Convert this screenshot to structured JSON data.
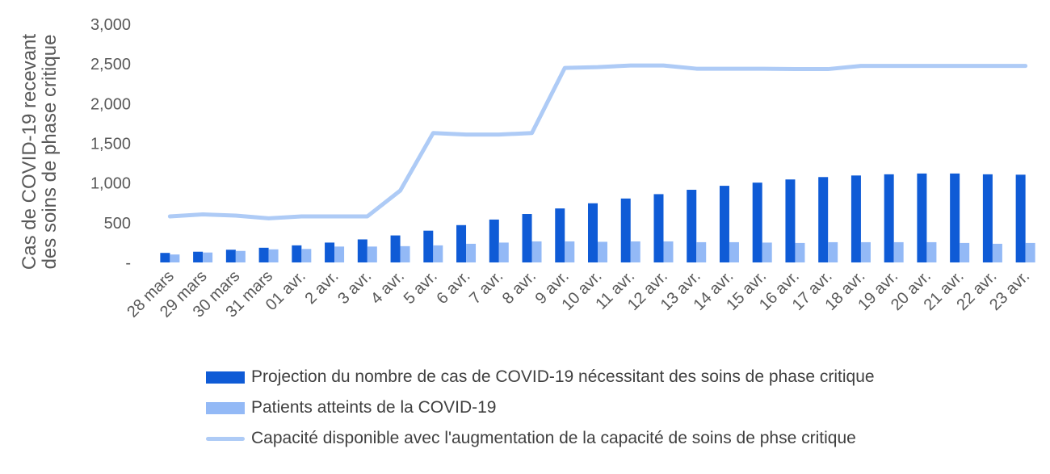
{
  "chart_data": {
    "type": "bar",
    "categories": [
      "28 mars",
      "29 mars",
      "30 mars",
      "31 mars",
      "01 avr.",
      "2 avr.",
      "3 avr.",
      "4 avr.",
      "5 avr.",
      "6 avr.",
      "7 avr.",
      "8 avr.",
      "9 avr.",
      "10 avr.",
      "11 avr.",
      "12 avr.",
      "13 avr.",
      "14 avr.",
      "15 avr.",
      "16 avr.",
      "17 avr.",
      "18 avr.",
      "19 avr.",
      "20 avr.",
      "21 avr.",
      "22 avr.",
      "23 avr."
    ],
    "ylabel_line1": "Cas de COVID-19 recevant",
    "ylabel_line2": "des soins de phase critique",
    "ylim": [
      0,
      3000
    ],
    "yticks": [
      0,
      500,
      1000,
      1500,
      2000,
      2500,
      3000
    ],
    "ytick_labels": [
      "-",
      "500",
      "1,000",
      "1,500",
      "2,000",
      "2,500",
      "3,000"
    ],
    "grid": false,
    "legend_position": "bottom",
    "series": [
      {
        "name": "Projection du nombre de cas de COVID-19 nécessitant des soins de phase critique",
        "kind": "bar",
        "color": "#0f5bd6",
        "values": [
          120,
          135,
          160,
          185,
          215,
          250,
          290,
          340,
          400,
          470,
          540,
          610,
          680,
          745,
          805,
          860,
          915,
          965,
          1005,
          1045,
          1075,
          1095,
          1110,
          1120,
          1120,
          1110,
          1105
        ]
      },
      {
        "name": "Patients atteints de la COVID-19",
        "kind": "bar",
        "color": "#93b9f6",
        "values": [
          100,
          125,
          145,
          165,
          170,
          200,
          200,
          205,
          215,
          235,
          250,
          265,
          265,
          260,
          265,
          265,
          255,
          255,
          250,
          245,
          255,
          255,
          255,
          255,
          245,
          235,
          245
        ]
      },
      {
        "name": "Capacité disponible avec l'augmentation de la capacité de soins de phse critique",
        "kind": "line",
        "color": "#aecbf6",
        "values": [
          580,
          605,
          590,
          555,
          580,
          580,
          580,
          905,
          1630,
          1610,
          1610,
          1630,
          2450,
          2460,
          2480,
          2480,
          2440,
          2440,
          2440,
          2435,
          2435,
          2475,
          2475,
          2475,
          2475,
          2475,
          2475
        ]
      }
    ]
  }
}
